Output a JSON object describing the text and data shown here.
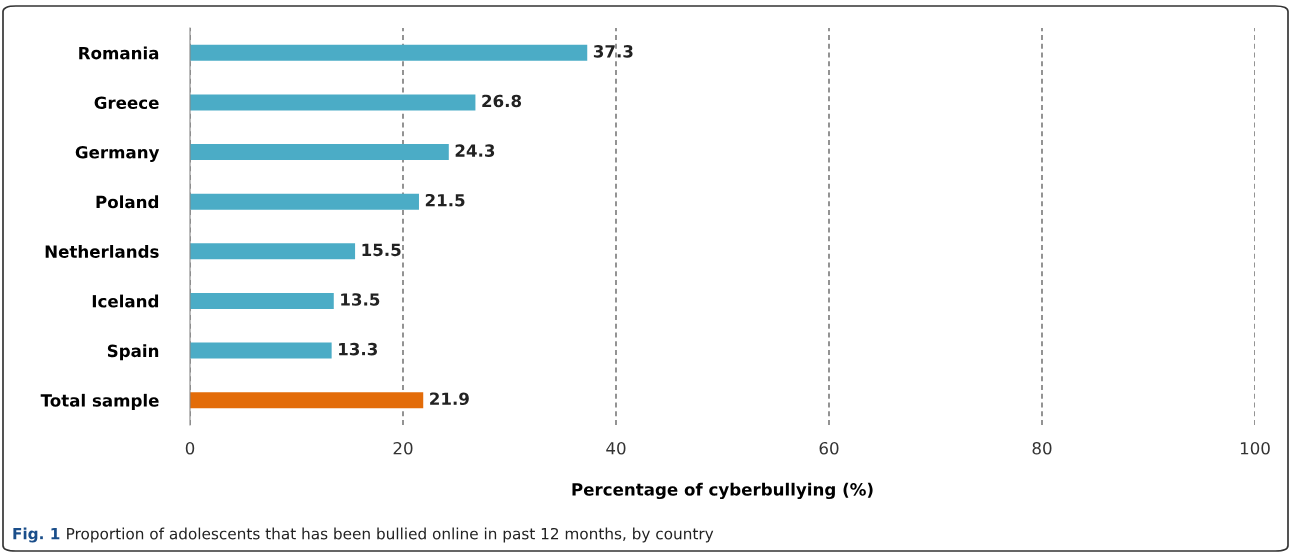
{
  "chart_data": {
    "type": "bar",
    "orientation": "horizontal",
    "categories": [
      "Romania",
      "Greece",
      "Germany",
      "Poland",
      "Netherlands",
      "Iceland",
      "Spain",
      "Total sample"
    ],
    "values": [
      37.3,
      26.8,
      24.3,
      21.5,
      15.5,
      13.5,
      13.3,
      21.9
    ],
    "colors": [
      "#4bacc6",
      "#4bacc6",
      "#4bacc6",
      "#4bacc6",
      "#4bacc6",
      "#4bacc6",
      "#4bacc6",
      "#e36c09"
    ],
    "data_labels": true,
    "xlim": [
      0,
      100
    ],
    "xticks": [
      0,
      20,
      40,
      60,
      80,
      100
    ],
    "xlabel": "Percentage of cyberbullying (%)",
    "grid": "x",
    "annotations": [
      "Fig. 1",
      "Proportion of adolescents that has been bullied online in past 12 months, by country"
    ]
  }
}
